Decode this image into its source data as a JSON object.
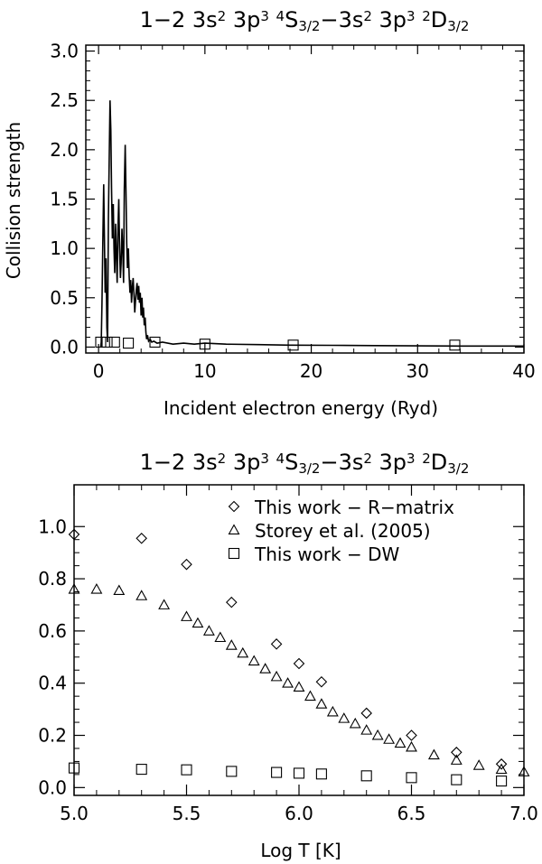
{
  "chart_data": [
    {
      "type": "line",
      "title_parts": [
        "1−2  3s",
        "2",
        "  3p",
        "3",
        " ",
        "4",
        "S",
        "3/2",
        "−3s",
        "2",
        "  3p",
        "3",
        " ",
        "2",
        "D",
        "3/2"
      ],
      "title": "1−2 3s² 3p³ ⁴S3/2−3s² 3p³ ²D3/2",
      "xlabel": "Incident electron energy (Ryd)",
      "ylabel": "Collision strength",
      "xlim": [
        -1.2,
        40
      ],
      "ylim": [
        -0.06,
        3.06
      ],
      "xticks": [
        0,
        10,
        20,
        30,
        40
      ],
      "yticks": [
        0.0,
        0.5,
        1.0,
        1.5,
        2.0,
        2.5,
        3.0
      ],
      "ytick_labels": [
        "0.0",
        "0.5",
        "1.0",
        "1.5",
        "2.0",
        "2.5",
        "3.0"
      ],
      "series": [
        {
          "style": "line",
          "x": [
            0.2,
            0.25,
            0.32,
            0.4,
            0.48,
            0.55,
            0.62,
            0.7,
            0.78,
            0.85,
            0.92,
            1.0,
            1.08,
            1.15,
            1.22,
            1.3,
            1.38,
            1.45,
            1.52,
            1.6,
            1.68,
            1.75,
            1.82,
            1.9,
            1.98,
            2.05,
            2.12,
            2.2,
            2.28,
            2.35,
            2.42,
            2.5,
            2.58,
            2.65,
            2.72,
            2.8,
            2.88,
            2.95,
            3.02,
            3.1,
            3.18,
            3.25,
            3.32,
            3.4,
            3.48,
            3.55,
            3.62,
            3.7,
            3.78,
            3.85,
            3.92,
            4.0,
            4.08,
            4.15,
            4.22,
            4.3,
            4.38,
            4.45,
            4.52,
            4.6,
            4.7,
            4.85,
            5.0,
            5.2,
            5.5,
            6.0,
            7.0,
            8.0,
            9.0,
            10.0,
            12.0,
            15.0,
            18.0,
            22.0,
            26.0,
            30.0,
            34.0,
            38.0,
            40.0
          ],
          "values": [
            0.0,
            0.05,
            0.45,
            1.05,
            1.65,
            1.1,
            0.55,
            0.9,
            0.2,
            0.05,
            1.3,
            1.9,
            2.5,
            2.2,
            1.6,
            1.1,
            1.45,
            1.0,
            0.75,
            1.25,
            0.9,
            0.65,
            1.2,
            1.5,
            1.0,
            0.7,
            0.85,
            1.2,
            0.95,
            0.65,
            1.6,
            2.05,
            1.55,
            1.05,
            0.8,
            1.0,
            0.72,
            0.55,
            0.68,
            0.45,
            0.62,
            0.7,
            0.55,
            0.35,
            0.48,
            0.58,
            0.65,
            0.48,
            0.62,
            0.45,
            0.55,
            0.32,
            0.5,
            0.3,
            0.4,
            0.22,
            0.3,
            0.15,
            0.08,
            0.12,
            0.06,
            0.08,
            0.05,
            0.06,
            0.04,
            0.05,
            0.03,
            0.04,
            0.03,
            0.04,
            0.03,
            0.025,
            0.02,
            0.018,
            0.015,
            0.012,
            0.01,
            0.01,
            0.01
          ]
        },
        {
          "style": "square",
          "x": [
            0.2,
            0.8,
            1.5,
            2.8,
            5.3,
            10.0,
            18.3,
            33.5
          ],
          "values": [
            0.05,
            0.05,
            0.05,
            0.04,
            0.05,
            0.03,
            0.02,
            0.02
          ]
        }
      ]
    },
    {
      "type": "scatter",
      "title_parts": [
        "1−2  3s",
        "2",
        "  3p",
        "3",
        " ",
        "4",
        "S",
        "3/2",
        "−3s",
        "2",
        "  3p",
        "3",
        " ",
        "2",
        "D",
        "3/2"
      ],
      "title": "1−2 3s² 3p³ ⁴S3/2−3s² 3p³ ²D3/2",
      "xlabel": "Log T [K]",
      "ylabel": "",
      "xlim": [
        5.0,
        7.0
      ],
      "ylim": [
        -0.03,
        1.16
      ],
      "xticks": [
        5.0,
        5.5,
        6.0,
        6.5,
        7.0
      ],
      "xtick_labels": [
        "5.0",
        "5.5",
        "6.0",
        "6.5",
        "7.0"
      ],
      "yticks": [
        0.0,
        0.2,
        0.4,
        0.6,
        0.8,
        1.0
      ],
      "ytick_labels": [
        "0.0",
        "0.2",
        "0.4",
        "0.6",
        "0.8",
        "1.0"
      ],
      "legend_position": "top-right",
      "series": [
        {
          "name": "This work − R−matrix",
          "marker": "diamond",
          "x": [
            5.0,
            5.3,
            5.5,
            5.7,
            5.9,
            6.0,
            6.1,
            6.3,
            6.5,
            6.7,
            6.9
          ],
          "values": [
            0.97,
            0.955,
            0.855,
            0.71,
            0.55,
            0.475,
            0.405,
            0.285,
            0.2,
            0.135,
            0.09
          ]
        },
        {
          "name": "Storey et al. (2005)",
          "marker": "triangle",
          "x": [
            5.0,
            5.1,
            5.2,
            5.3,
            5.4,
            5.5,
            5.55,
            5.6,
            5.65,
            5.7,
            5.75,
            5.8,
            5.85,
            5.9,
            5.95,
            6.0,
            6.05,
            6.1,
            6.15,
            6.2,
            6.25,
            6.3,
            6.35,
            6.4,
            6.45,
            6.5,
            6.6,
            6.7,
            6.8,
            6.9,
            7.0
          ],
          "values": [
            0.76,
            0.76,
            0.755,
            0.735,
            0.7,
            0.655,
            0.63,
            0.6,
            0.575,
            0.545,
            0.515,
            0.485,
            0.455,
            0.425,
            0.4,
            0.385,
            0.35,
            0.32,
            0.29,
            0.265,
            0.245,
            0.22,
            0.2,
            0.185,
            0.17,
            0.155,
            0.125,
            0.105,
            0.085,
            0.07,
            0.06
          ]
        },
        {
          "name": "This work − DW",
          "marker": "square",
          "x": [
            5.0,
            5.3,
            5.5,
            5.7,
            5.9,
            6.0,
            6.1,
            6.3,
            6.5,
            6.7,
            6.9
          ],
          "values": [
            0.075,
            0.07,
            0.068,
            0.062,
            0.058,
            0.055,
            0.052,
            0.045,
            0.038,
            0.03,
            0.025
          ]
        }
      ]
    }
  ]
}
